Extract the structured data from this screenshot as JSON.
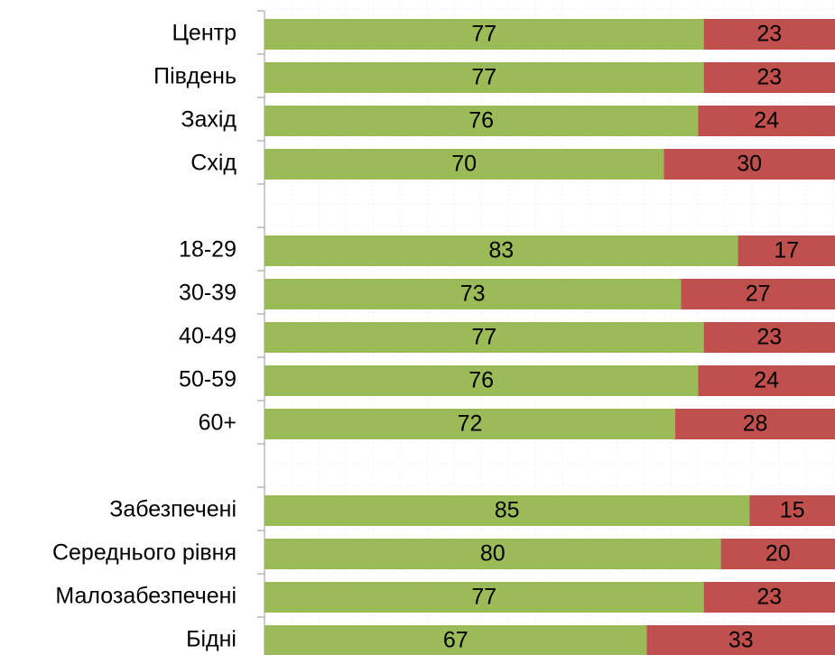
{
  "chart_data": {
    "type": "stacked-barh",
    "categories": [
      "Центр",
      "Південь",
      "Захід",
      "Схід",
      null,
      "18-29",
      "30-39",
      "40-49",
      "50-59",
      "60+",
      null,
      "Забезпечені",
      "Середнього рівня",
      "Малозабезпечені",
      "Бідні"
    ],
    "series": [
      {
        "color": "#9bbb59",
        "values": [
          77,
          77,
          76,
          70,
          null,
          83,
          73,
          77,
          76,
          72,
          null,
          85,
          80,
          77,
          67
        ]
      },
      {
        "color": "#c0504d",
        "values": [
          23,
          23,
          24,
          30,
          null,
          17,
          27,
          23,
          24,
          28,
          null,
          15,
          20,
          23,
          33
        ]
      }
    ],
    "xlim": [
      0,
      100
    ]
  }
}
